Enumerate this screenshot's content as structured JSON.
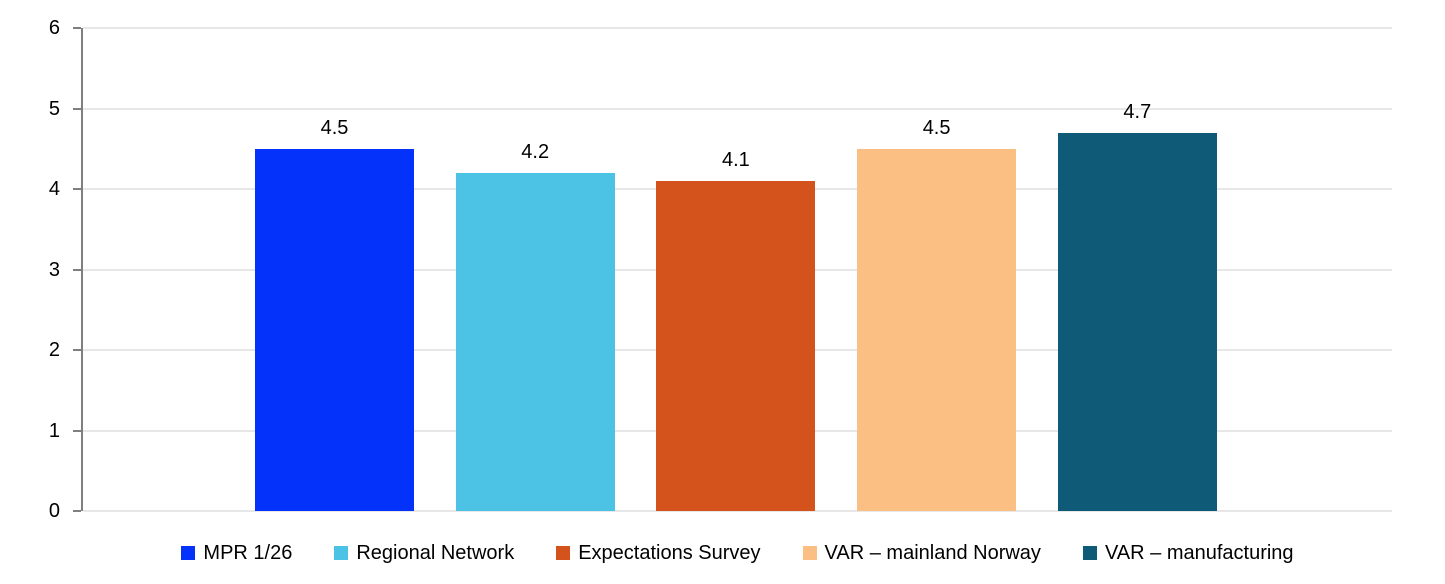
{
  "chart_data": {
    "type": "bar",
    "categories": [
      "MPR 1/26",
      "Regional Network",
      "Expectations Survey",
      "VAR – mainland Norway",
      "VAR – manufacturing"
    ],
    "values": [
      4.5,
      4.2,
      4.1,
      4.5,
      4.7
    ],
    "value_labels": [
      "4.5",
      "4.2",
      "4.1",
      "4.5",
      "4.7"
    ],
    "bar_colors": [
      "#0432fa",
      "#4cc2e5",
      "#d4521c",
      "#fbbe83",
      "#0f5a77"
    ],
    "title": "",
    "xlabel": "",
    "ylabel": "",
    "ylim": [
      0,
      6
    ],
    "yticks": [
      "0",
      "1",
      "2",
      "3",
      "4",
      "5",
      "6"
    ],
    "grid": true,
    "legend_position": "bottom",
    "legend": [
      {
        "label": "MPR 1/26",
        "color": "#0432fa"
      },
      {
        "label": "Regional Network",
        "color": "#4cc2e5"
      },
      {
        "label": "Expectations Survey",
        "color": "#d4521c"
      },
      {
        "label": "VAR – mainland Norway",
        "color": "#fbbe83"
      },
      {
        "label": "VAR – manufacturing",
        "color": "#0f5a77"
      }
    ]
  },
  "colors": {
    "axis_line": "#7f7f7f",
    "gridline": "#e7e7e7",
    "text": "#000000",
    "background": "#ffffff"
  }
}
